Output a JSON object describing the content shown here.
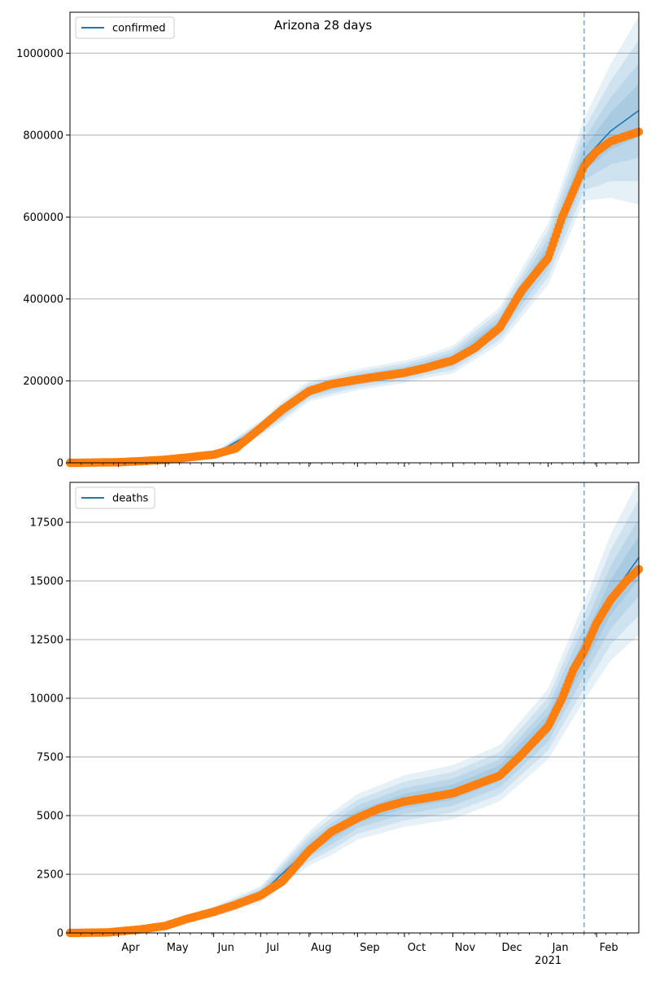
{
  "title": "Arizona 28 days",
  "x_axis": {
    "start": "2020-03-01",
    "end": "2021-02-28",
    "month_ticks": [
      {
        "date": "2020-04-01",
        "label": "Apr",
        "sub": ""
      },
      {
        "date": "2020-05-01",
        "label": "May",
        "sub": ""
      },
      {
        "date": "2020-06-01",
        "label": "Jun",
        "sub": ""
      },
      {
        "date": "2020-07-01",
        "label": "Jul",
        "sub": ""
      },
      {
        "date": "2020-08-01",
        "label": "Aug",
        "sub": ""
      },
      {
        "date": "2020-09-01",
        "label": "Sep",
        "sub": ""
      },
      {
        "date": "2020-10-01",
        "label": "Oct",
        "sub": ""
      },
      {
        "date": "2020-11-01",
        "label": "Nov",
        "sub": ""
      },
      {
        "date": "2020-12-01",
        "label": "Dec",
        "sub": ""
      },
      {
        "date": "2021-01-01",
        "label": "Jan",
        "sub": "2021"
      },
      {
        "date": "2021-02-01",
        "label": "Feb",
        "sub": ""
      }
    ],
    "forecast_start": "2021-01-24"
  },
  "colors": {
    "model": "#1f77b4",
    "observed": "#ff7f0e",
    "band": "#1f77b4",
    "grid": "#b0b0b0"
  },
  "chart_data": [
    {
      "type": "line",
      "legend": "confirmed",
      "legend_position": "top-left",
      "grid": "y",
      "ylim": [
        0,
        1100000
      ],
      "yticks": [
        {
          "value": 0,
          "label": "0"
        },
        {
          "value": 200000,
          "label": "200000"
        },
        {
          "value": 400000,
          "label": "400000"
        },
        {
          "value": 600000,
          "label": "600000"
        },
        {
          "value": 800000,
          "label": "800000"
        },
        {
          "value": 1000000,
          "label": "1000000"
        }
      ],
      "observed": [
        [
          "2020-03-01",
          0
        ],
        [
          "2020-03-15",
          500
        ],
        [
          "2020-04-01",
          1500
        ],
        [
          "2020-04-15",
          4000
        ],
        [
          "2020-05-01",
          7500
        ],
        [
          "2020-05-15",
          13000
        ],
        [
          "2020-06-01",
          20000
        ],
        [
          "2020-06-15",
          35000
        ],
        [
          "2020-07-01",
          85000
        ],
        [
          "2020-07-15",
          130000
        ],
        [
          "2020-08-01",
          175000
        ],
        [
          "2020-08-15",
          192000
        ],
        [
          "2020-09-01",
          203000
        ],
        [
          "2020-09-15",
          211000
        ],
        [
          "2020-10-01",
          220000
        ],
        [
          "2020-10-15",
          232000
        ],
        [
          "2020-11-01",
          250000
        ],
        [
          "2020-11-15",
          280000
        ],
        [
          "2020-12-01",
          330000
        ],
        [
          "2020-12-15",
          420000
        ],
        [
          "2021-01-01",
          500000
        ],
        [
          "2021-01-10",
          600000
        ],
        [
          "2021-01-24",
          725000
        ],
        [
          "2021-02-01",
          760000
        ],
        [
          "2021-02-10",
          785000
        ],
        [
          "2021-02-20",
          798000
        ],
        [
          "2021-02-28",
          808000
        ]
      ],
      "model": [
        [
          "2020-03-01",
          0
        ],
        [
          "2020-04-01",
          1500
        ],
        [
          "2020-05-01",
          7500
        ],
        [
          "2020-06-01",
          20000
        ],
        [
          "2020-07-01",
          85000
        ],
        [
          "2020-08-01",
          175000
        ],
        [
          "2020-09-01",
          203000
        ],
        [
          "2020-10-01",
          222000
        ],
        [
          "2020-11-01",
          252000
        ],
        [
          "2020-12-01",
          335000
        ],
        [
          "2021-01-01",
          510000
        ],
        [
          "2021-01-24",
          740000
        ],
        [
          "2021-02-10",
          810000
        ],
        [
          "2021-02-28",
          860000
        ]
      ],
      "band_half_width": [
        [
          "2020-03-01",
          0
        ],
        [
          "2020-06-01",
          4000
        ],
        [
          "2020-07-15",
          25000
        ],
        [
          "2020-08-15",
          25000
        ],
        [
          "2020-10-15",
          28000
        ],
        [
          "2020-12-01",
          45000
        ],
        [
          "2021-01-01",
          75000
        ],
        [
          "2021-01-24",
          100000
        ],
        [
          "2021-02-28",
          230000
        ]
      ]
    },
    {
      "type": "line",
      "legend": "deaths",
      "legend_position": "top-left",
      "grid": "y",
      "ylim": [
        0,
        19200
      ],
      "yticks": [
        {
          "value": 0,
          "label": "0"
        },
        {
          "value": 2500,
          "label": "2500"
        },
        {
          "value": 5000,
          "label": "5000"
        },
        {
          "value": 7500,
          "label": "7500"
        },
        {
          "value": 10000,
          "label": "10000"
        },
        {
          "value": 12500,
          "label": "12500"
        },
        {
          "value": 15000,
          "label": "15000"
        },
        {
          "value": 17500,
          "label": "17500"
        }
      ],
      "observed": [
        [
          "2020-03-01",
          0
        ],
        [
          "2020-03-25",
          20
        ],
        [
          "2020-04-15",
          150
        ],
        [
          "2020-05-01",
          300
        ],
        [
          "2020-05-15",
          600
        ],
        [
          "2020-06-01",
          900
        ],
        [
          "2020-06-15",
          1200
        ],
        [
          "2020-07-01",
          1600
        ],
        [
          "2020-07-15",
          2200
        ],
        [
          "2020-08-01",
          3500
        ],
        [
          "2020-08-15",
          4300
        ],
        [
          "2020-09-01",
          4900
        ],
        [
          "2020-09-15",
          5300
        ],
        [
          "2020-10-01",
          5600
        ],
        [
          "2020-10-15",
          5750
        ],
        [
          "2020-11-01",
          5950
        ],
        [
          "2020-11-15",
          6300
        ],
        [
          "2020-12-01",
          6700
        ],
        [
          "2020-12-15",
          7600
        ],
        [
          "2021-01-01",
          8800
        ],
        [
          "2021-01-10",
          10000
        ],
        [
          "2021-01-17",
          11200
        ],
        [
          "2021-01-24",
          12000
        ],
        [
          "2021-02-01",
          13200
        ],
        [
          "2021-02-10",
          14200
        ],
        [
          "2021-02-20",
          15000
        ],
        [
          "2021-02-28",
          15500
        ]
      ],
      "model": [
        [
          "2020-03-01",
          0
        ],
        [
          "2020-04-01",
          50
        ],
        [
          "2020-05-01",
          300
        ],
        [
          "2020-06-01",
          900
        ],
        [
          "2020-07-01",
          1650
        ],
        [
          "2020-08-01",
          3600
        ],
        [
          "2020-09-01",
          4950
        ],
        [
          "2020-10-01",
          5620
        ],
        [
          "2020-11-01",
          6000
        ],
        [
          "2020-12-01",
          6800
        ],
        [
          "2021-01-01",
          8900
        ],
        [
          "2021-01-24",
          12000
        ],
        [
          "2021-02-10",
          14300
        ],
        [
          "2021-02-28",
          16000
        ]
      ],
      "band_half_width": [
        [
          "2020-03-01",
          0
        ],
        [
          "2020-05-01",
          100
        ],
        [
          "2020-07-01",
          350
        ],
        [
          "2020-08-15",
          900
        ],
        [
          "2020-10-01",
          1100
        ],
        [
          "2020-12-01",
          1200
        ],
        [
          "2021-01-01",
          1500
        ],
        [
          "2021-01-24",
          2100
        ],
        [
          "2021-02-28",
          3300
        ]
      ]
    }
  ]
}
